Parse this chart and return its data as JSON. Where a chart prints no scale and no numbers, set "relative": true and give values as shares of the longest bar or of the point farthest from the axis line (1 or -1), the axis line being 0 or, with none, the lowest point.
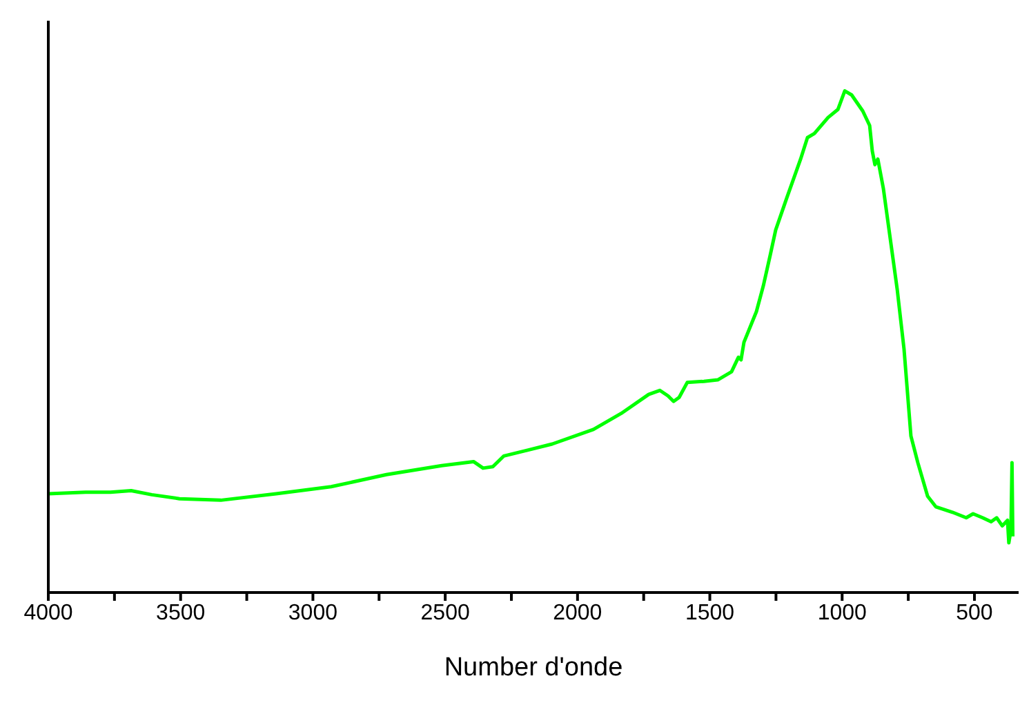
{
  "chart_data": {
    "type": "line",
    "xlabel": "Number d'onde",
    "relative": true,
    "xlim": [
      4000,
      333
    ],
    "xticks": [
      4000,
      {
        "value": 3750,
        "label": null
      },
      3500,
      {
        "value": 3250,
        "label": null
      },
      3000,
      {
        "value": 2750,
        "label": null
      },
      2500,
      {
        "value": 2250,
        "label": null
      },
      2000,
      {
        "value": 1750,
        "label": null
      },
      1500,
      {
        "value": 1250,
        "label": null
      },
      1000,
      {
        "value": 750,
        "label": null
      },
      500
    ],
    "tick_labels": "x",
    "grid": false,
    "legend": false,
    "marker": "none",
    "line_style": "solid",
    "series": [
      {
        "color": "#00ff00",
        "x": [
          4000,
          3859,
          3765,
          3687,
          3609,
          3504,
          3348,
          3139,
          2931,
          2722,
          2513,
          2393,
          2357,
          2320,
          2279,
          2096,
          1940,
          1835,
          1731,
          1689,
          1658,
          1637,
          1616,
          1585,
          1522,
          1470,
          1418,
          1392,
          1382,
          1371,
          1324,
          1298,
          1272,
          1251,
          1209,
          1157,
          1131,
          1105,
          1053,
          1016,
          990,
          964,
          922,
          896,
          886,
          876,
          865,
          844,
          792,
          766,
          740,
          714,
          677,
          646,
          583,
          531,
          505,
          469,
          437,
          416,
          395,
          375,
          370,
          362,
          358,
          355
        ],
        "values": [
          0.197,
          0.2,
          0.2,
          0.203,
          0.195,
          0.187,
          0.184,
          0.197,
          0.211,
          0.235,
          0.253,
          0.261,
          0.248,
          0.251,
          0.272,
          0.296,
          0.325,
          0.357,
          0.395,
          0.403,
          0.392,
          0.381,
          0.389,
          0.419,
          0.421,
          0.424,
          0.44,
          0.469,
          0.464,
          0.499,
          0.56,
          0.611,
          0.672,
          0.723,
          0.787,
          0.864,
          0.907,
          0.915,
          0.947,
          0.963,
          1.0,
          0.992,
          0.96,
          0.931,
          0.88,
          0.853,
          0.864,
          0.805,
          0.605,
          0.485,
          0.312,
          0.259,
          0.192,
          0.171,
          0.16,
          0.149,
          0.157,
          0.149,
          0.141,
          0.149,
          0.133,
          0.144,
          0.099,
          0.125,
          0.259,
          0.112
        ]
      }
    ]
  }
}
